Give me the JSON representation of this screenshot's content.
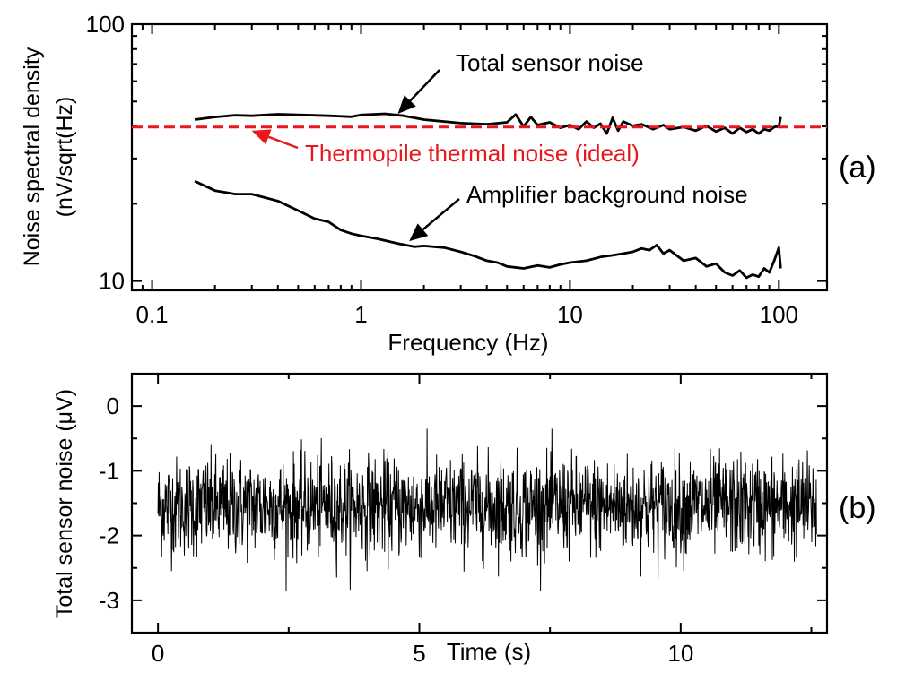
{
  "colors": {
    "ink": "#000000",
    "accent": "#e8171b",
    "background": "#ffffff"
  },
  "chart_data": [
    {
      "panel": "(a)",
      "type": "line",
      "xscale": "log",
      "yscale": "log",
      "xlabel": "Frequency (Hz)",
      "ylabel_lines": [
        "Noise spectral density",
        "(nV/sqrt(Hz)"
      ],
      "xlim": [
        0.08,
        170
      ],
      "ylim": [
        9.2,
        100
      ],
      "xticks": [
        0.1,
        1,
        10,
        100
      ],
      "xtick_labels": [
        "0.1",
        "1",
        "10",
        "100"
      ],
      "yticks": [
        10,
        100
      ],
      "ytick_labels": [
        "10",
        "100"
      ],
      "series": [
        {
          "name": "Total sensor noise",
          "style": "solid",
          "color": "#000000",
          "points": [
            [
              0.16,
              42.5
            ],
            [
              0.2,
              43.5
            ],
            [
              0.25,
              44.2
            ],
            [
              0.3,
              44.0
            ],
            [
              0.4,
              44.6
            ],
            [
              0.5,
              44.4
            ],
            [
              0.7,
              44.0
            ],
            [
              0.9,
              43.6
            ],
            [
              1.0,
              44.3
            ],
            [
              1.3,
              44.8
            ],
            [
              1.6,
              44.0
            ],
            [
              2.0,
              42.5
            ],
            [
              3.0,
              41.2
            ],
            [
              4.0,
              40.8
            ],
            [
              5.0,
              41.5
            ],
            [
              5.5,
              44.5
            ],
            [
              6.0,
              40.0
            ],
            [
              6.5,
              43.5
            ],
            [
              7.0,
              40.5
            ],
            [
              8.0,
              41.5
            ],
            [
              9.0,
              39.5
            ],
            [
              10.0,
              40.5
            ],
            [
              11.0,
              39.0
            ],
            [
              12.0,
              41.8
            ],
            [
              13.0,
              39.5
            ],
            [
              14.0,
              41.0
            ],
            [
              15.0,
              37.5
            ],
            [
              16.0,
              43.2
            ],
            [
              17.0,
              38.5
            ],
            [
              18.0,
              41.8
            ],
            [
              20.0,
              40.2
            ],
            [
              22.0,
              40.8
            ],
            [
              25.0,
              39.0
            ],
            [
              28.0,
              40.5
            ],
            [
              30.0,
              39.0
            ],
            [
              35.0,
              39.8
            ],
            [
              40.0,
              38.5
            ],
            [
              45.0,
              40.2
            ],
            [
              50.0,
              38.2
            ],
            [
              55.0,
              39.5
            ],
            [
              60.0,
              37.5
            ],
            [
              65.0,
              39.5
            ],
            [
              70.0,
              38.0
            ],
            [
              75.0,
              39.0
            ],
            [
              80.0,
              37.5
            ],
            [
              85.0,
              39.0
            ],
            [
              90.0,
              38.5
            ],
            [
              95.0,
              39.8
            ],
            [
              100.0,
              40.0
            ],
            [
              102.0,
              43.5
            ]
          ]
        },
        {
          "name": "Amplifier background noise",
          "style": "solid",
          "color": "#000000",
          "points": [
            [
              0.16,
              24.5
            ],
            [
              0.2,
              22.5
            ],
            [
              0.25,
              21.8
            ],
            [
              0.3,
              21.8
            ],
            [
              0.4,
              20.5
            ],
            [
              0.5,
              18.8
            ],
            [
              0.6,
              17.5
            ],
            [
              0.7,
              17.0
            ],
            [
              0.8,
              15.8
            ],
            [
              0.9,
              15.3
            ],
            [
              1.0,
              15.0
            ],
            [
              1.2,
              14.6
            ],
            [
              1.5,
              14.0
            ],
            [
              1.8,
              13.6
            ],
            [
              2.0,
              13.7
            ],
            [
              2.5,
              13.5
            ],
            [
              3.0,
              13.0
            ],
            [
              3.5,
              12.5
            ],
            [
              4.0,
              12.0
            ],
            [
              4.5,
              11.8
            ],
            [
              5.0,
              11.4
            ],
            [
              6.0,
              11.2
            ],
            [
              7.0,
              11.5
            ],
            [
              8.0,
              11.3
            ],
            [
              9.0,
              11.6
            ],
            [
              10.0,
              11.8
            ],
            [
              12.0,
              12.0
            ],
            [
              14.0,
              12.4
            ],
            [
              16.0,
              12.6
            ],
            [
              18.0,
              12.8
            ],
            [
              20.0,
              13.0
            ],
            [
              22.0,
              13.4
            ],
            [
              24.0,
              13.2
            ],
            [
              26.0,
              13.8
            ],
            [
              28.0,
              12.8
            ],
            [
              30.0,
              13.2
            ],
            [
              35.0,
              12.0
            ],
            [
              40.0,
              12.3
            ],
            [
              45.0,
              11.4
            ],
            [
              50.0,
              11.7
            ],
            [
              55.0,
              10.8
            ],
            [
              60.0,
              10.5
            ],
            [
              65.0,
              11.0
            ],
            [
              70.0,
              10.3
            ],
            [
              75.0,
              10.6
            ],
            [
              80.0,
              10.4
            ],
            [
              85.0,
              11.2
            ],
            [
              90.0,
              10.8
            ],
            [
              95.0,
              12.0
            ],
            [
              100.0,
              13.5
            ],
            [
              102.0,
              11.2
            ]
          ]
        },
        {
          "name": "Thermopile thermal noise (ideal)",
          "style": "dashed",
          "color": "#e8171b",
          "points": [
            [
              0.08,
              39.8
            ],
            [
              170,
              39.8
            ]
          ]
        }
      ],
      "annotations": [
        {
          "text": "Total sensor noise",
          "color": "#000000",
          "arrow_to": [
            1.5,
            44.8
          ]
        },
        {
          "text": "Thermopile thermal noise (ideal)",
          "color": "#e8171b",
          "arrow_to": [
            0.3,
            38.5
          ]
        },
        {
          "text": "Amplifier background noise",
          "color": "#000000",
          "arrow_to": [
            1.7,
            14.3
          ]
        }
      ],
      "panel_label": "(a)"
    },
    {
      "panel": "(b)",
      "type": "line",
      "xlabel": "Time (s)",
      "ylabel": "Total sensor noise (μV)",
      "xlim": [
        -0.5,
        12.8
      ],
      "ylim": [
        -3.5,
        0.5
      ],
      "xticks": [
        0,
        5,
        10
      ],
      "xtick_labels": [
        "0",
        "5",
        "10"
      ],
      "yticks": [
        0,
        -1,
        -2,
        -3
      ],
      "ytick_labels": [
        "0",
        "-1",
        "-2",
        "-3"
      ],
      "series": [
        {
          "name": "Total sensor noise",
          "color": "#000000",
          "t_start": 0.0,
          "t_end": 12.6,
          "n_points": 1800,
          "mean": -1.55,
          "std": 0.38,
          "min": -2.85,
          "max": -0.35
        }
      ],
      "panel_label": "(b)"
    }
  ]
}
